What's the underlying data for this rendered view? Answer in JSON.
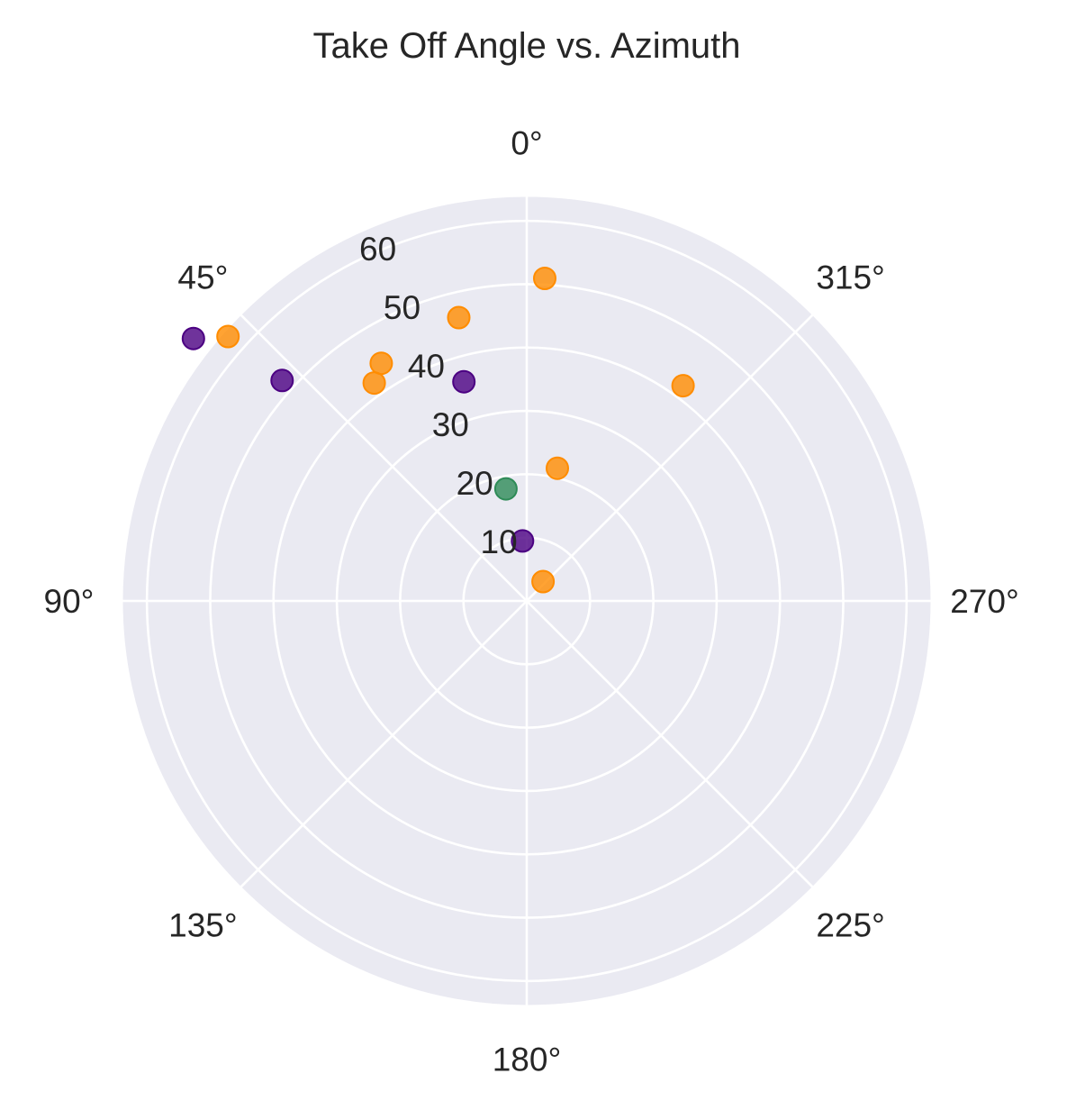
{
  "chart_data": {
    "type": "scatter",
    "projection": "polar",
    "title": "Take Off Angle vs. Azimuth",
    "theta_zero_location": "N",
    "theta_direction": "counterclockwise",
    "theta_ticks": [
      0,
      45,
      90,
      135,
      180,
      225,
      270,
      315
    ],
    "theta_tick_labels": [
      "0°",
      "45°",
      "90°",
      "135°",
      "180°",
      "225°",
      "270°",
      "315°"
    ],
    "r_ticks": [
      10,
      20,
      30,
      40,
      50,
      60
    ],
    "r_tick_labels": [
      "10",
      "20",
      "30",
      "40",
      "50",
      "60"
    ],
    "r_range": [
      0,
      64
    ],
    "r_label_angle": 22.5,
    "grid": true,
    "background_color": "#EAEAF2",
    "grid_color": "#FFFFFF",
    "series": [
      {
        "color": "#FF8C00",
        "points": [
          {
            "azimuth": 356.8,
            "takeoff": 51.0
          },
          {
            "azimuth": 48.5,
            "takeoff": 63.0
          },
          {
            "azimuth": 13.5,
            "takeoff": 46.0
          },
          {
            "azimuth": 31.5,
            "takeoff": 44.0
          },
          {
            "azimuth": 35.0,
            "takeoff": 42.0
          },
          {
            "azimuth": 324.0,
            "takeoff": 42.0
          },
          {
            "azimuth": 347.0,
            "takeoff": 21.5
          },
          {
            "azimuth": 320.0,
            "takeoff": 4.0
          }
        ]
      },
      {
        "color": "#4B0082",
        "points": [
          {
            "azimuth": 51.8,
            "takeoff": 67.0
          },
          {
            "azimuth": 48.0,
            "takeoff": 52.0
          },
          {
            "azimuth": 16.0,
            "takeoff": 36.0
          },
          {
            "azimuth": 4.0,
            "takeoff": 9.5
          }
        ]
      },
      {
        "color": "#2E8B57",
        "points": [
          {
            "azimuth": 10.5,
            "takeoff": 18.0
          }
        ]
      }
    ]
  }
}
